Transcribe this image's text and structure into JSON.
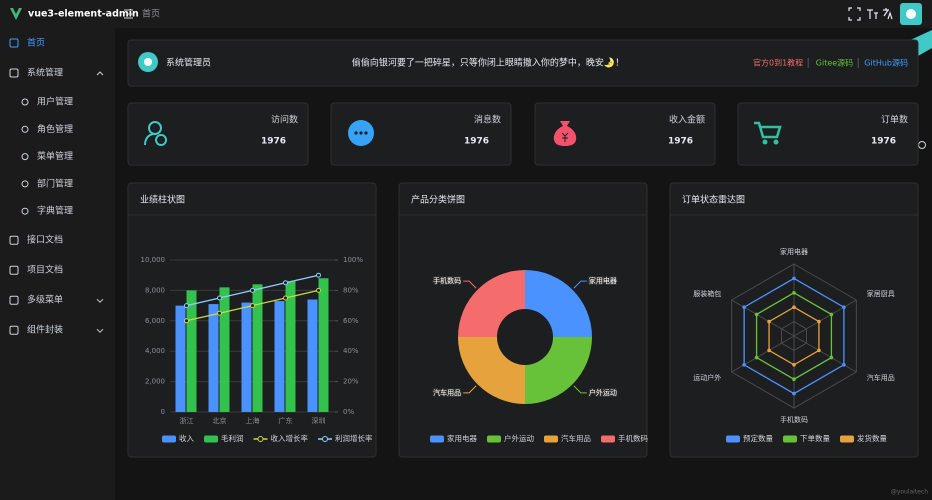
{
  "app": {
    "logo_text": "vue3-element-admin",
    "breadcrumb": "首页"
  },
  "menu": [
    {
      "label": "首页",
      "active": true
    },
    {
      "label": "系统管理",
      "expanded": true,
      "children": [
        "用户管理",
        "角色管理",
        "菜单管理",
        "部门管理",
        "字典管理"
      ]
    },
    {
      "label": "接口文档"
    },
    {
      "label": "项目文档"
    },
    {
      "label": "多级菜单",
      "collapsible": true
    },
    {
      "label": "组件封装",
      "collapsible": true
    }
  ],
  "greeting": {
    "user": "系统管理员",
    "text": "偷偷向银河要了一把碎星，只等你闭上眼睛撒入你的梦中，晚安🌛！",
    "links": [
      "官方0到1教程",
      "Gitee源码",
      "GitHub源码"
    ]
  },
  "stats": [
    {
      "label": "访问数",
      "value": 1976
    },
    {
      "label": "消息数",
      "value": 1976
    },
    {
      "label": "收入金额",
      "value": 1976
    },
    {
      "label": "订单数",
      "value": 1976
    }
  ],
  "chart_data": [
    {
      "type": "bar",
      "title": "业绩柱状图",
      "categories": [
        "浙江",
        "北京",
        "上海",
        "广东",
        "深圳"
      ],
      "series": [
        {
          "name": "收入",
          "color": "#4992ff",
          "values": [
            7000,
            7100,
            7200,
            7300,
            7400
          ]
        },
        {
          "name": "毛利润",
          "color": "#34c24e",
          "values": [
            8000,
            8200,
            8400,
            8600,
            8800
          ]
        },
        {
          "name": "收入增长率",
          "type": "line",
          "axis": "y2",
          "color": "#c8d84a",
          "values": [
            60,
            65,
            70,
            75,
            80
          ]
        },
        {
          "name": "利润增长率",
          "type": "line",
          "axis": "y2",
          "color": "#8fd0ff",
          "values": [
            70,
            75,
            80,
            85,
            90
          ]
        }
      ],
      "ylim": [
        0,
        10000
      ],
      "yticks": [
        0,
        {
          "value": 2000,
          "label": "2,000"
        },
        {
          "value": 4000,
          "label": "4,000"
        },
        {
          "value": 6000,
          "label": "6,000"
        },
        {
          "value": 8000,
          "label": "8,000"
        },
        {
          "value": 10000,
          "label": "10,000"
        }
      ],
      "y2lim": [
        0,
        100
      ],
      "y2ticks": [
        {
          "value": 0,
          "label": "0%"
        },
        {
          "value": 20,
          "label": "20%"
        },
        {
          "value": 40,
          "label": "40%"
        },
        {
          "value": 60,
          "label": "60%"
        },
        {
          "value": 80,
          "label": "80%"
        },
        {
          "value": 100,
          "label": "100%"
        }
      ],
      "grid": true
    },
    {
      "type": "pie",
      "title": "产品分类饼图",
      "categories": [
        "家用电器",
        "户外运动",
        "汽车用品",
        "手机数码"
      ],
      "values": [
        25,
        25,
        25,
        25
      ],
      "colors": [
        "#4992ff",
        "#67c23a",
        "#e6a23c",
        "#f56c6c"
      ]
    },
    {
      "type": "radar",
      "title": "订单状态雷达图",
      "indicators": [
        "家用电器",
        "家居厨具",
        "汽车用品",
        "手机数码",
        "运动户外",
        "服装箱包"
      ],
      "rlim": [
        0,
        100
      ],
      "series": [
        {
          "name": "预定数量",
          "color": "#4992ff",
          "values": [
            80,
            80,
            80,
            80,
            80,
            80
          ]
        },
        {
          "name": "下单数量",
          "color": "#67c23a",
          "values": [
            60,
            60,
            60,
            60,
            60,
            60
          ]
        },
        {
          "name": "发货数量",
          "color": "#e6a23c",
          "values": [
            40,
            40,
            40,
            40,
            40,
            40
          ]
        }
      ]
    }
  ],
  "watermark": "@youlaitech"
}
